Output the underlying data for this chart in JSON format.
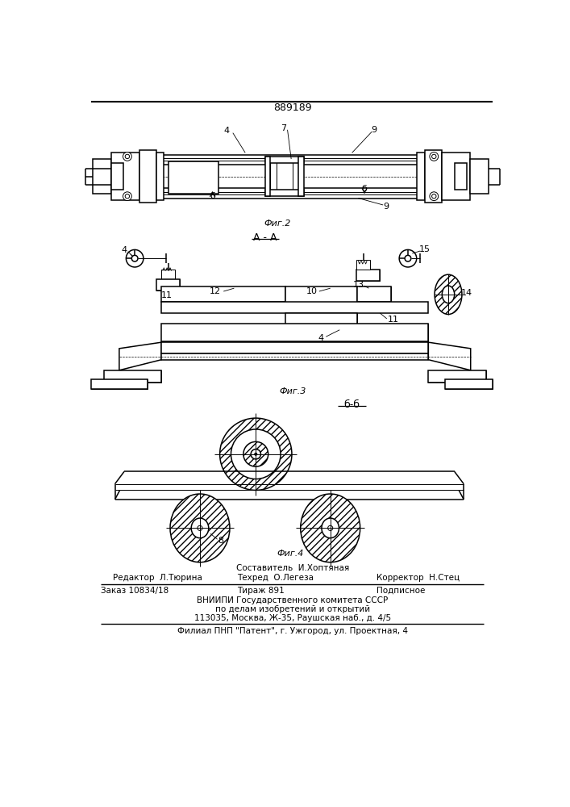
{
  "patent_number": "889189",
  "background_color": "#ffffff",
  "footer_texts": {
    "sostavitel": "Составитель  И.Хоптяная",
    "redaktor": "Редактор  Л.Тюрина",
    "tekhred": "Техред  О.Легеза",
    "korrektor": "Корректор  Н.Стец",
    "zakaz": "Заказ 10834/18",
    "tirazh": "Тираж 891",
    "podpisnoe": "Подписное",
    "vniiipi": "ВНИИПИ Государственного комитета СССР",
    "po_delam": "по делам изобретений и открытий",
    "address": "113035, Москва, Ж-35, Раушская наб., д. 4/5",
    "filial": "Филиал ПНП \"Патент\", г. Ужгород, ул. Проектная, 4"
  }
}
